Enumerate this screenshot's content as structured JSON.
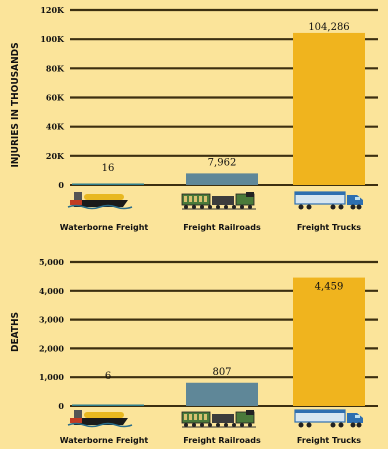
{
  "colors": {
    "background": "#fbe49a",
    "grid": "#3c2f10",
    "waterborne": "#2d7d8c",
    "rail": "#5f8798",
    "truck": "#f0b41e",
    "ship_hull": "#1a1a1a",
    "ship_red": "#c23b22",
    "ship_cargo": "#e8b820",
    "rail_green": "#4a7a3a",
    "truck_blue": "#2e6fb0"
  },
  "icons": [
    "ship-icon",
    "train-icon",
    "truck-icon"
  ],
  "chart_data": [
    {
      "type": "bar",
      "ylabel": "INJURIES IN THOUSANDS",
      "ylim": [
        0,
        120000
      ],
      "ticks": [
        "120K",
        "100K",
        "80K",
        "60K",
        "40K",
        "20K",
        "0"
      ],
      "tick_values": [
        120000,
        100000,
        80000,
        60000,
        40000,
        20000,
        0
      ],
      "categories": [
        "Waterborne Freight",
        "Freight Railroads",
        "Freight Trucks"
      ],
      "values": [
        16,
        7962,
        104286
      ],
      "value_labels": [
        "16",
        "7,962",
        "104,286"
      ],
      "grid": true
    },
    {
      "type": "bar",
      "ylabel": "DEATHS",
      "ylim": [
        0,
        5000
      ],
      "ticks": [
        "5,000",
        "4,000",
        "3,000",
        "2,000",
        "1,000",
        "0"
      ],
      "tick_values": [
        5000,
        4000,
        3000,
        2000,
        1000,
        0
      ],
      "categories": [
        "Waterborne Freight",
        "Freight Railroads",
        "Freight Trucks"
      ],
      "values": [
        6,
        807,
        4459
      ],
      "value_labels": [
        "6",
        "807",
        "4,459"
      ],
      "grid": true
    }
  ]
}
